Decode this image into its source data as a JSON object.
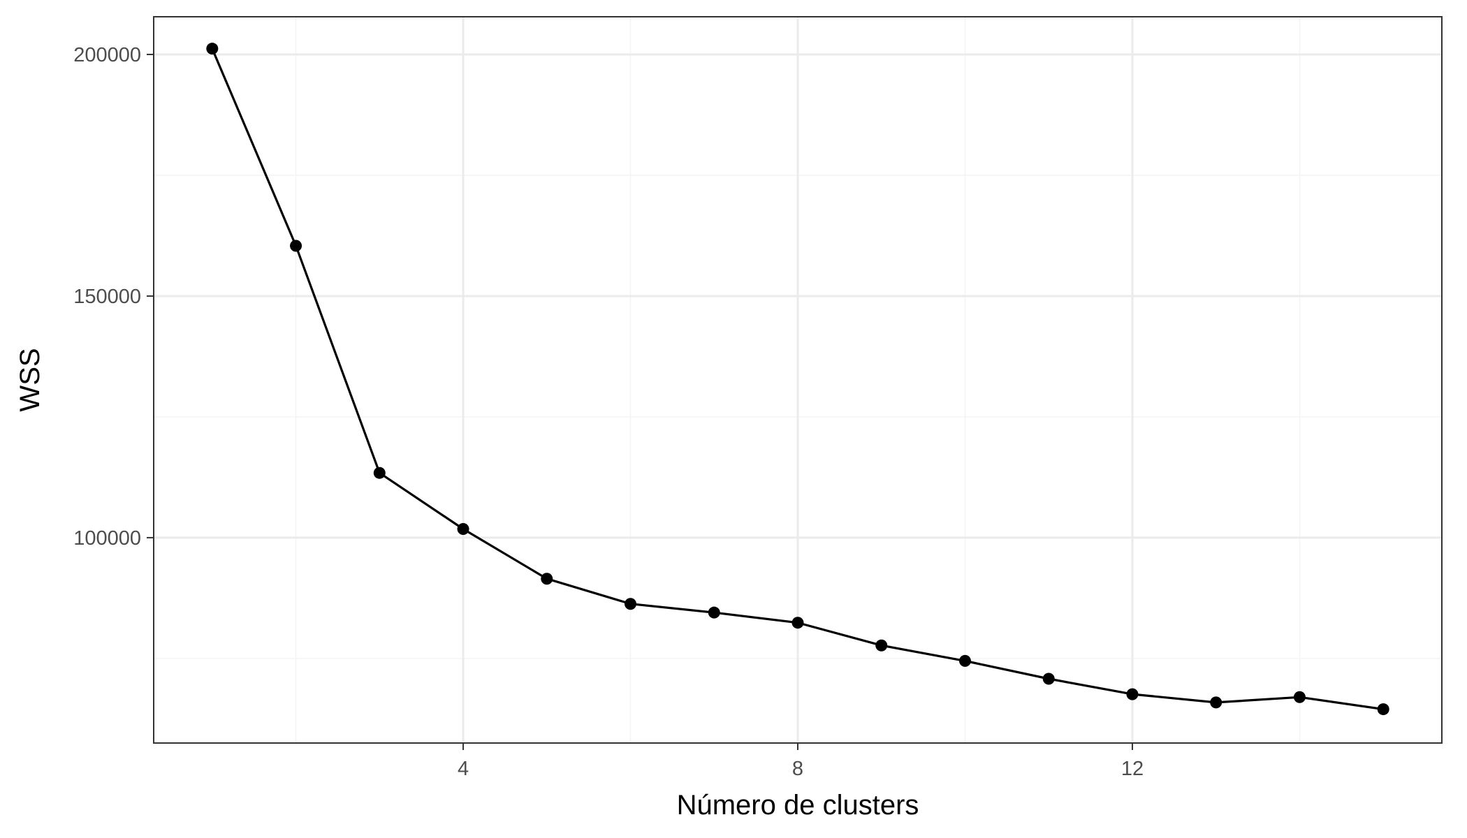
{
  "chart_data": {
    "type": "line",
    "title": "",
    "xlabel": "Número de clusters",
    "ylabel": "WSS",
    "x": [
      1,
      2,
      3,
      4,
      5,
      6,
      7,
      8,
      9,
      10,
      11,
      12,
      13,
      14,
      15
    ],
    "series": [
      {
        "values": [
          201200,
          160400,
          113400,
          101800,
          91500,
          86300,
          84500,
          82400,
          77700,
          74500,
          70800,
          67600,
          65900,
          67000,
          64500
        ]
      }
    ],
    "xlim": [
      0.3,
      15.7
    ],
    "ylim": [
      57500,
      207800
    ],
    "x_ticks": [
      4,
      8,
      12
    ],
    "x_tick_labels": [
      "4",
      "8",
      "12"
    ],
    "x_minor_ticks": [
      2,
      6,
      10,
      14
    ],
    "y_ticks": [
      100000,
      150000,
      200000
    ],
    "y_tick_labels": [
      "100000",
      "150000",
      "200000"
    ],
    "y_minor_ticks": [
      75000,
      125000,
      175000
    ],
    "grid": true,
    "legend": "none",
    "colors": {
      "line": "#000000",
      "point": "#000000",
      "grid_major": "#ebebeb",
      "grid_minor": "#f4f4f4",
      "panel_border": "#333333",
      "tick_text": "#4d4d4d"
    }
  }
}
